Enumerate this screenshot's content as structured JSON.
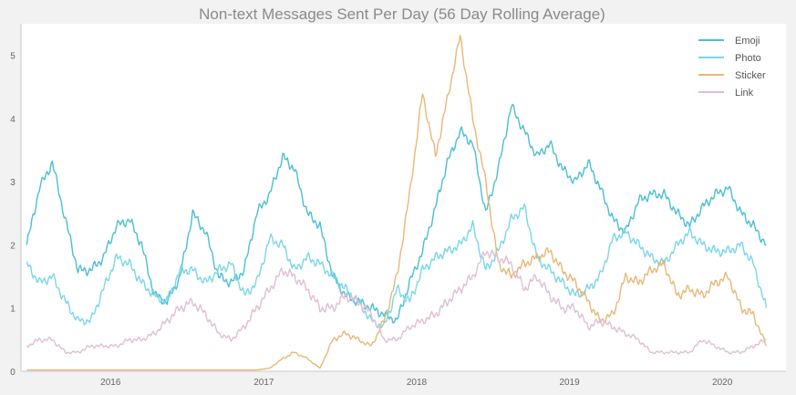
{
  "chart_data": {
    "type": "line",
    "title": "Non-text Messages Sent Per Day (56 Day Rolling Average)",
    "xlabel": "",
    "ylabel": "",
    "x_ticks": [
      "2016",
      "2017",
      "2018",
      "2019",
      "2020"
    ],
    "y_ticks": [
      0,
      1,
      2,
      3,
      4,
      5
    ],
    "xlim": [
      "2015-06-01",
      "2020-06-01"
    ],
    "ylim": [
      0,
      5.5
    ],
    "grid": false,
    "legend_position": "top-right",
    "x": [
      "2015-06",
      "2015-07",
      "2015-08",
      "2015-09",
      "2015-10",
      "2015-11",
      "2015-12",
      "2016-01",
      "2016-02",
      "2016-03",
      "2016-04",
      "2016-05",
      "2016-06",
      "2016-07",
      "2016-08",
      "2016-09",
      "2016-10",
      "2016-11",
      "2016-12",
      "2017-01",
      "2017-02",
      "2017-03",
      "2017-04",
      "2017-05",
      "2017-06",
      "2017-07",
      "2017-08",
      "2017-09",
      "2017-10",
      "2017-11",
      "2017-12",
      "2018-01",
      "2018-02",
      "2018-03",
      "2018-04",
      "2018-05",
      "2018-06",
      "2018-07",
      "2018-08",
      "2018-09",
      "2018-10",
      "2018-11",
      "2018-12",
      "2019-01",
      "2019-02",
      "2019-03",
      "2019-04",
      "2019-05",
      "2019-06",
      "2019-07",
      "2019-08",
      "2019-09",
      "2019-10",
      "2019-11",
      "2019-12",
      "2020-01",
      "2020-02",
      "2020-03",
      "2020-04"
    ],
    "series": [
      {
        "name": "Emoji",
        "color": "#4bbfd0",
        "values": [
          2.0,
          2.9,
          3.3,
          2.4,
          1.6,
          1.6,
          1.8,
          2.3,
          2.4,
          2.0,
          1.2,
          1.1,
          1.5,
          2.5,
          2.2,
          1.5,
          1.4,
          1.6,
          2.5,
          2.8,
          3.4,
          3.2,
          2.5,
          2.3,
          1.5,
          1.2,
          1.1,
          1.0,
          0.9,
          0.8,
          1.4,
          1.9,
          2.6,
          3.3,
          3.8,
          3.6,
          2.5,
          3.2,
          4.2,
          3.8,
          3.4,
          3.6,
          3.2,
          3.0,
          3.3,
          2.9,
          2.4,
          2.2,
          2.7,
          2.8,
          2.8,
          2.5,
          2.3,
          2.6,
          2.8,
          2.9,
          2.5,
          2.3,
          2.0
        ]
      },
      {
        "name": "Photo",
        "color": "#7ad6e8",
        "values": [
          1.7,
          1.4,
          1.5,
          1.1,
          0.8,
          0.8,
          1.3,
          1.8,
          1.7,
          1.4,
          1.2,
          1.1,
          1.6,
          1.6,
          1.4,
          1.6,
          1.7,
          1.2,
          1.4,
          2.1,
          2.0,
          1.6,
          1.8,
          1.7,
          1.5,
          1.3,
          1.1,
          0.8,
          0.7,
          1.3,
          1.1,
          1.6,
          1.8,
          1.9,
          2.0,
          2.3,
          1.6,
          1.9,
          2.4,
          2.6,
          1.8,
          1.6,
          1.4,
          1.2,
          1.3,
          1.5,
          2.1,
          2.2,
          2.0,
          1.8,
          1.7,
          2.0,
          2.2,
          2.0,
          1.9,
          1.9,
          2.0,
          1.7,
          1.0
        ]
      },
      {
        "name": "Sticker",
        "color": "#e6b877",
        "values": [
          0.02,
          0.02,
          0.02,
          0.02,
          0.02,
          0.02,
          0.02,
          0.02,
          0.02,
          0.02,
          0.02,
          0.02,
          0.02,
          0.02,
          0.02,
          0.02,
          0.02,
          0.02,
          0.02,
          0.05,
          0.2,
          0.3,
          0.2,
          0.05,
          0.5,
          0.6,
          0.5,
          0.4,
          0.8,
          1.5,
          2.8,
          4.4,
          3.4,
          4.3,
          5.3,
          4.0,
          3.0,
          1.7,
          1.5,
          1.7,
          1.8,
          1.9,
          1.6,
          1.4,
          1.1,
          0.8,
          0.9,
          1.5,
          1.4,
          1.6,
          1.7,
          1.2,
          1.3,
          1.2,
          1.4,
          1.5,
          1.0,
          0.9,
          0.4
        ]
      },
      {
        "name": "Link",
        "color": "#dfbfd3",
        "values": [
          0.4,
          0.5,
          0.5,
          0.3,
          0.3,
          0.4,
          0.4,
          0.4,
          0.5,
          0.5,
          0.6,
          0.8,
          1.0,
          1.1,
          0.9,
          0.6,
          0.5,
          0.7,
          1.0,
          1.3,
          1.6,
          1.5,
          1.3,
          1.0,
          1.0,
          1.2,
          1.1,
          0.9,
          0.5,
          0.5,
          0.7,
          0.8,
          0.9,
          1.1,
          1.3,
          1.5,
          1.9,
          1.8,
          1.7,
          1.3,
          1.5,
          1.2,
          1.0,
          1.0,
          0.7,
          0.8,
          0.7,
          0.6,
          0.5,
          0.3,
          0.3,
          0.3,
          0.3,
          0.5,
          0.4,
          0.3,
          0.3,
          0.4,
          0.5
        ]
      }
    ]
  }
}
